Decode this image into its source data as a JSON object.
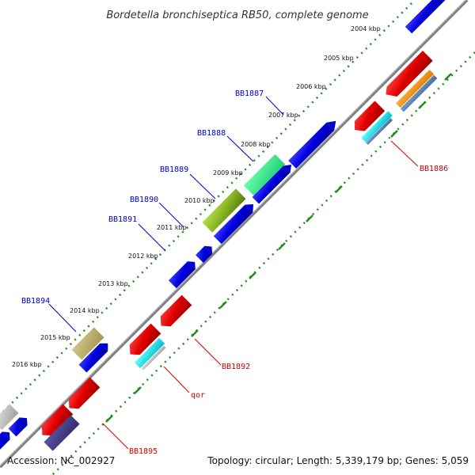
{
  "title": "Bordetella bronchiseptica RB50, complete genome",
  "footer": {
    "accession": "Accession: NC_002927",
    "topology": "Topology: circular; Length: 5,339,179 bp; Genes: 5,059"
  },
  "ticks": [
    "2004 kbp",
    "2005 kbp",
    "2006 kbp",
    "2007 kbp",
    "2008 kbp",
    "2009 kbp",
    "2010 kbp",
    "2011 kbp",
    "2012 kbp",
    "2013 kbp",
    "2014 kbp",
    "2015 kbp",
    "2016 kbp"
  ],
  "colors": {
    "plus_strand_label": "#0000cc",
    "minus_strand_label": "#cc0000",
    "backbone": "#8a8a8a",
    "ruler_dots": "#228b22"
  },
  "gene_labels": {
    "bb1887": "BB1887",
    "bb1888": "BB1888",
    "bb1889": "BB1889",
    "bb1890": "BB1890",
    "bb1891": "BB1891",
    "bb1894": "BB1894",
    "bb1886": "BB1886",
    "bb1892": "BB1892",
    "qor": "qor",
    "bb1895": "BB1895"
  }
}
